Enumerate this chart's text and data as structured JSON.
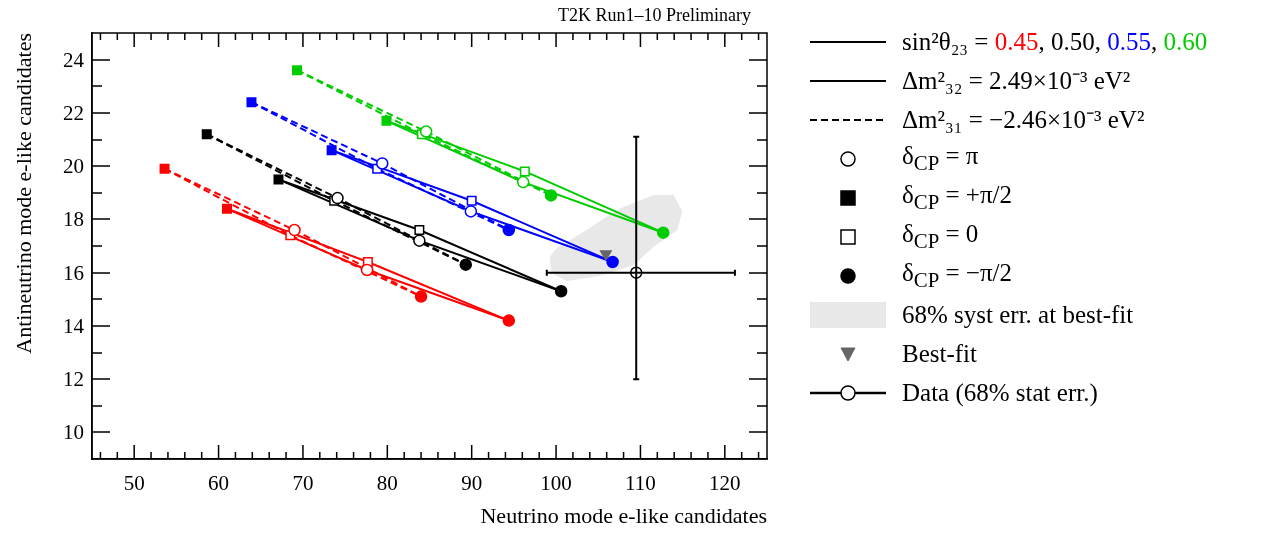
{
  "chart_data": {
    "type": "line",
    "title": "T2K Run1–10 Preliminary",
    "xlabel": "Neutrino mode e-like candidates",
    "ylabel": "Antineutrino mode e-like candidates",
    "legend_title": "sin²θ₂₃ = 0.45, 0.50, 0.55, 0.60",
    "legend": "right",
    "grid": false,
    "xlim": [
      45,
      125
    ],
    "ylim": [
      9,
      25
    ],
    "xticks": [
      {
        "value": 46,
        "label": null
      },
      {
        "value": 48,
        "label": null
      },
      50,
      {
        "value": 52,
        "label": null
      },
      {
        "value": 54,
        "label": null
      },
      {
        "value": 56,
        "label": null
      },
      {
        "value": 58,
        "label": null
      },
      60,
      {
        "value": 62,
        "label": null
      },
      {
        "value": 64,
        "label": null
      },
      {
        "value": 66,
        "label": null
      },
      {
        "value": 68,
        "label": null
      },
      70,
      {
        "value": 72,
        "label": null
      },
      {
        "value": 74,
        "label": null
      },
      {
        "value": 76,
        "label": null
      },
      {
        "value": 78,
        "label": null
      },
      80,
      {
        "value": 82,
        "label": null
      },
      {
        "value": 84,
        "label": null
      },
      {
        "value": 86,
        "label": null
      },
      {
        "value": 88,
        "label": null
      },
      90,
      {
        "value": 92,
        "label": null
      },
      {
        "value": 94,
        "label": null
      },
      {
        "value": 96,
        "label": null
      },
      {
        "value": 98,
        "label": null
      },
      100,
      {
        "value": 102,
        "label": null
      },
      {
        "value": 104,
        "label": null
      },
      {
        "value": 106,
        "label": null
      },
      {
        "value": 108,
        "label": null
      },
      110,
      {
        "value": 112,
        "label": null
      },
      {
        "value": 114,
        "label": null
      },
      {
        "value": 116,
        "label": null
      },
      {
        "value": 118,
        "label": null
      },
      120,
      {
        "value": 122,
        "label": null
      },
      {
        "value": 124,
        "label": null
      }
    ],
    "yticks": [
      10,
      {
        "value": 11,
        "label": null
      },
      12,
      {
        "value": 13,
        "label": null
      },
      14,
      {
        "value": 15,
        "label": null
      },
      16,
      {
        "value": 17,
        "label": null
      },
      18,
      {
        "value": 19,
        "label": null
      },
      20,
      {
        "value": 21,
        "label": null
      },
      22,
      {
        "value": 23,
        "label": null
      },
      24
    ],
    "series": [
      {
        "type": "line",
        "color": "#ff0000",
        "line_style": "solid",
        "x": [
          61.0,
          77.7,
          94.4
        ],
        "values": [
          18.4,
          16.4,
          14.2
        ]
      },
      {
        "type": "line",
        "color": "#ff0000",
        "line_style": "solid",
        "x": [
          61.0,
          77.6,
          94.4
        ],
        "values": [
          18.4,
          16.1,
          14.2
        ]
      },
      {
        "type": "line",
        "color": "#ff0000",
        "line_style": "dashed",
        "x": [
          53.6,
          68.5,
          84.0
        ],
        "values": [
          19.9,
          17.4,
          15.1
        ]
      },
      {
        "type": "line",
        "color": "#ff0000",
        "line_style": "dashed",
        "x": [
          53.6,
          69.0,
          84.0
        ],
        "values": [
          19.9,
          17.6,
          15.1
        ]
      },
      {
        "type": "line",
        "name": "Δm²₃₂ = 2.49×10⁻³ eV²",
        "color": "#000000",
        "line_style": "solid",
        "x": [
          67.1,
          83.8,
          100.6
        ],
        "values": [
          19.5,
          17.6,
          15.3
        ]
      },
      {
        "type": "line",
        "color": "#000000",
        "line_style": "solid",
        "x": [
          67.1,
          83.8,
          100.6
        ],
        "values": [
          19.5,
          17.2,
          15.3
        ]
      },
      {
        "type": "line",
        "name": "Δm²₃₁ = −2.46×10⁻³ eV²",
        "color": "#000000",
        "line_style": "dashed",
        "x": [
          58.6,
          73.7,
          89.3
        ],
        "values": [
          21.2,
          18.7,
          16.3
        ]
      },
      {
        "type": "line",
        "color": "#000000",
        "line_style": "dashed",
        "x": [
          58.6,
          74.1,
          89.3
        ],
        "values": [
          21.2,
          18.8,
          16.3
        ]
      },
      {
        "type": "line",
        "color": "#0000ff",
        "line_style": "solid",
        "x": [
          73.4,
          90.0,
          106.7
        ],
        "values": [
          20.6,
          18.7,
          16.4
        ]
      },
      {
        "type": "line",
        "color": "#0000ff",
        "line_style": "solid",
        "x": [
          73.4,
          89.9,
          106.7
        ],
        "values": [
          20.6,
          18.3,
          16.4
        ]
      },
      {
        "type": "line",
        "color": "#0000ff",
        "line_style": "dashed",
        "x": [
          63.9,
          78.8,
          94.4
        ],
        "values": [
          22.4,
          19.9,
          17.6
        ]
      },
      {
        "type": "line",
        "color": "#0000ff",
        "line_style": "dashed",
        "x": [
          63.9,
          79.4,
          94.4
        ],
        "values": [
          22.4,
          20.1,
          17.6
        ]
      },
      {
        "type": "line",
        "color": "#00cc00",
        "line_style": "solid",
        "x": [
          79.9,
          96.3,
          112.7
        ],
        "values": [
          21.7,
          19.8,
          17.5
        ]
      },
      {
        "type": "line",
        "color": "#00cc00",
        "line_style": "solid",
        "x": [
          79.9,
          96.1,
          112.7
        ],
        "values": [
          21.7,
          19.4,
          17.5
        ]
      },
      {
        "type": "line",
        "color": "#00cc00",
        "line_style": "dashed",
        "x": [
          69.3,
          84.1,
          99.4
        ],
        "values": [
          23.6,
          21.2,
          18.9
        ]
      },
      {
        "type": "line",
        "color": "#00cc00",
        "line_style": "dashed",
        "x": [
          69.3,
          84.6,
          99.4
        ],
        "values": [
          23.6,
          21.3,
          18.9
        ]
      },
      {
        "type": "scatter",
        "name": "δ$_{CP}$ = π",
        "marker": "circle",
        "color": "#ffffff",
        "colors": [
          "#ff0000",
          "#ff0000",
          "#000000",
          "#000000",
          "#0000ff",
          "#0000ff",
          "#00cc00",
          "#00cc00"
        ],
        "x": [
          77.6,
          69.0,
          83.8,
          74.1,
          89.9,
          79.4,
          96.1,
          84.6
        ],
        "values": [
          16.1,
          17.6,
          17.2,
          18.8,
          18.3,
          20.1,
          19.4,
          21.3
        ]
      },
      {
        "type": "scatter",
        "name": "δ$_{CP}$ = +π/2",
        "marker": "square",
        "color": "#000000",
        "colors": [
          "#ff0000",
          "#ff0000",
          "#000000",
          "#000000",
          "#0000ff",
          "#0000ff",
          "#00cc00",
          "#00cc00"
        ],
        "x": [
          61.0,
          53.6,
          67.1,
          58.6,
          73.4,
          63.9,
          79.9,
          69.3
        ],
        "values": [
          18.4,
          19.9,
          19.5,
          21.2,
          20.6,
          22.4,
          21.7,
          23.6
        ]
      },
      {
        "type": "scatter",
        "name": "δ$_{CP}$ = 0",
        "marker": "square",
        "color": "#ffffff",
        "colors": [
          "#ff0000",
          "#ff0000",
          "#000000",
          "#000000",
          "#0000ff",
          "#0000ff",
          "#00cc00",
          "#00cc00"
        ],
        "x": [
          77.7,
          68.5,
          83.8,
          73.7,
          90.0,
          78.8,
          96.3,
          84.1
        ],
        "values": [
          16.4,
          17.4,
          17.6,
          18.7,
          18.7,
          19.9,
          19.8,
          21.2
        ]
      },
      {
        "type": "scatter",
        "name": "δ$_{CP}$ = −π/2",
        "marker": "circle",
        "color": "#000000",
        "colors": [
          "#ff0000",
          "#ff0000",
          "#000000",
          "#000000",
          "#0000ff",
          "#0000ff",
          "#00cc00",
          "#00cc00"
        ],
        "x": [
          94.4,
          84.0,
          100.6,
          89.3,
          106.7,
          94.4,
          112.7,
          99.4
        ],
        "values": [
          14.2,
          15.1,
          15.3,
          16.3,
          16.4,
          17.6,
          17.5,
          18.9
        ]
      },
      {
        "type": "area",
        "name": "68% syst err. at best-fit",
        "color": "#e8e8e8",
        "x": [
          99.3,
          100.1,
          103.7,
          107.6,
          111.6,
          113.9,
          114.9,
          114.3,
          111.6,
          109.2,
          105.2,
          101.3,
          99.5,
          99.3
        ],
        "values": [
          16.6,
          16.9,
          17.6,
          18.4,
          18.9,
          18.9,
          18.3,
          17.6,
          17.0,
          16.3,
          15.9,
          15.7,
          16.0,
          16.6
        ]
      },
      {
        "type": "scatter",
        "name": "Best-fit",
        "marker": "triangle",
        "color": "#666666",
        "x": [
          105.9
        ],
        "values": [
          16.7
        ]
      },
      {
        "type": "scatter",
        "name": "Data (68% stat err.)",
        "marker": "circle",
        "color": "#ffffff",
        "x": [
          109.5
        ],
        "values": [
          16.0
        ],
        "errors": [
          [
            12.0,
            21.1
          ]
        ],
        "xerrors": [
          [
            98.9,
            121.2
          ]
        ]
      }
    ]
  }
}
